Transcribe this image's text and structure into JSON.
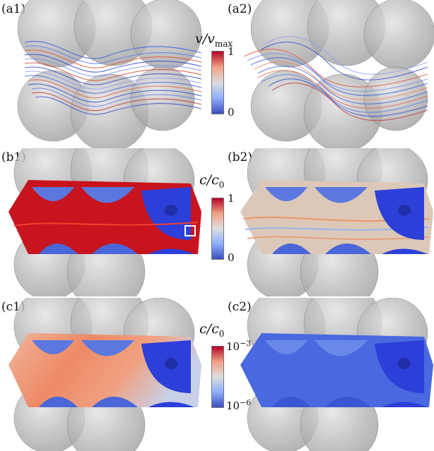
{
  "panels": [
    {
      "id": "a1",
      "label": "(a1)",
      "field": "streamlines",
      "view": "velocity magnitude"
    },
    {
      "id": "a2",
      "label": "(a2)",
      "field": "streamlines",
      "view": "velocity magnitude"
    },
    {
      "id": "b1",
      "label": "(b1)",
      "field": "surface",
      "view": "concentration"
    },
    {
      "id": "b2",
      "label": "(b2)",
      "field": "surface",
      "view": "concentration"
    },
    {
      "id": "c1",
      "label": "(c1)",
      "field": "surface",
      "view": "concentration log"
    },
    {
      "id": "c2",
      "label": "(c2)",
      "field": "surface",
      "view": "concentration log"
    }
  ],
  "colorbars": {
    "velocity": {
      "title_var": "v",
      "title_den": "v",
      "title_den_sub": "max",
      "max": "1",
      "min": "0"
    },
    "conc": {
      "title_var": "c",
      "title_den": "c",
      "title_den_sub": "0",
      "max": "1",
      "min": "0"
    },
    "conc_log": {
      "title_var": "c",
      "title_den": "c",
      "title_den_sub": "0",
      "max_base": "10",
      "max_exp": "−3",
      "min_base": "10",
      "min_exp": "−6"
    }
  },
  "colors": {
    "high": "#b40426",
    "mid": "#dddddd",
    "low": "#3b4cc0",
    "sphere": "#b8b8b8",
    "deep_blue": "#2c3fd8"
  }
}
